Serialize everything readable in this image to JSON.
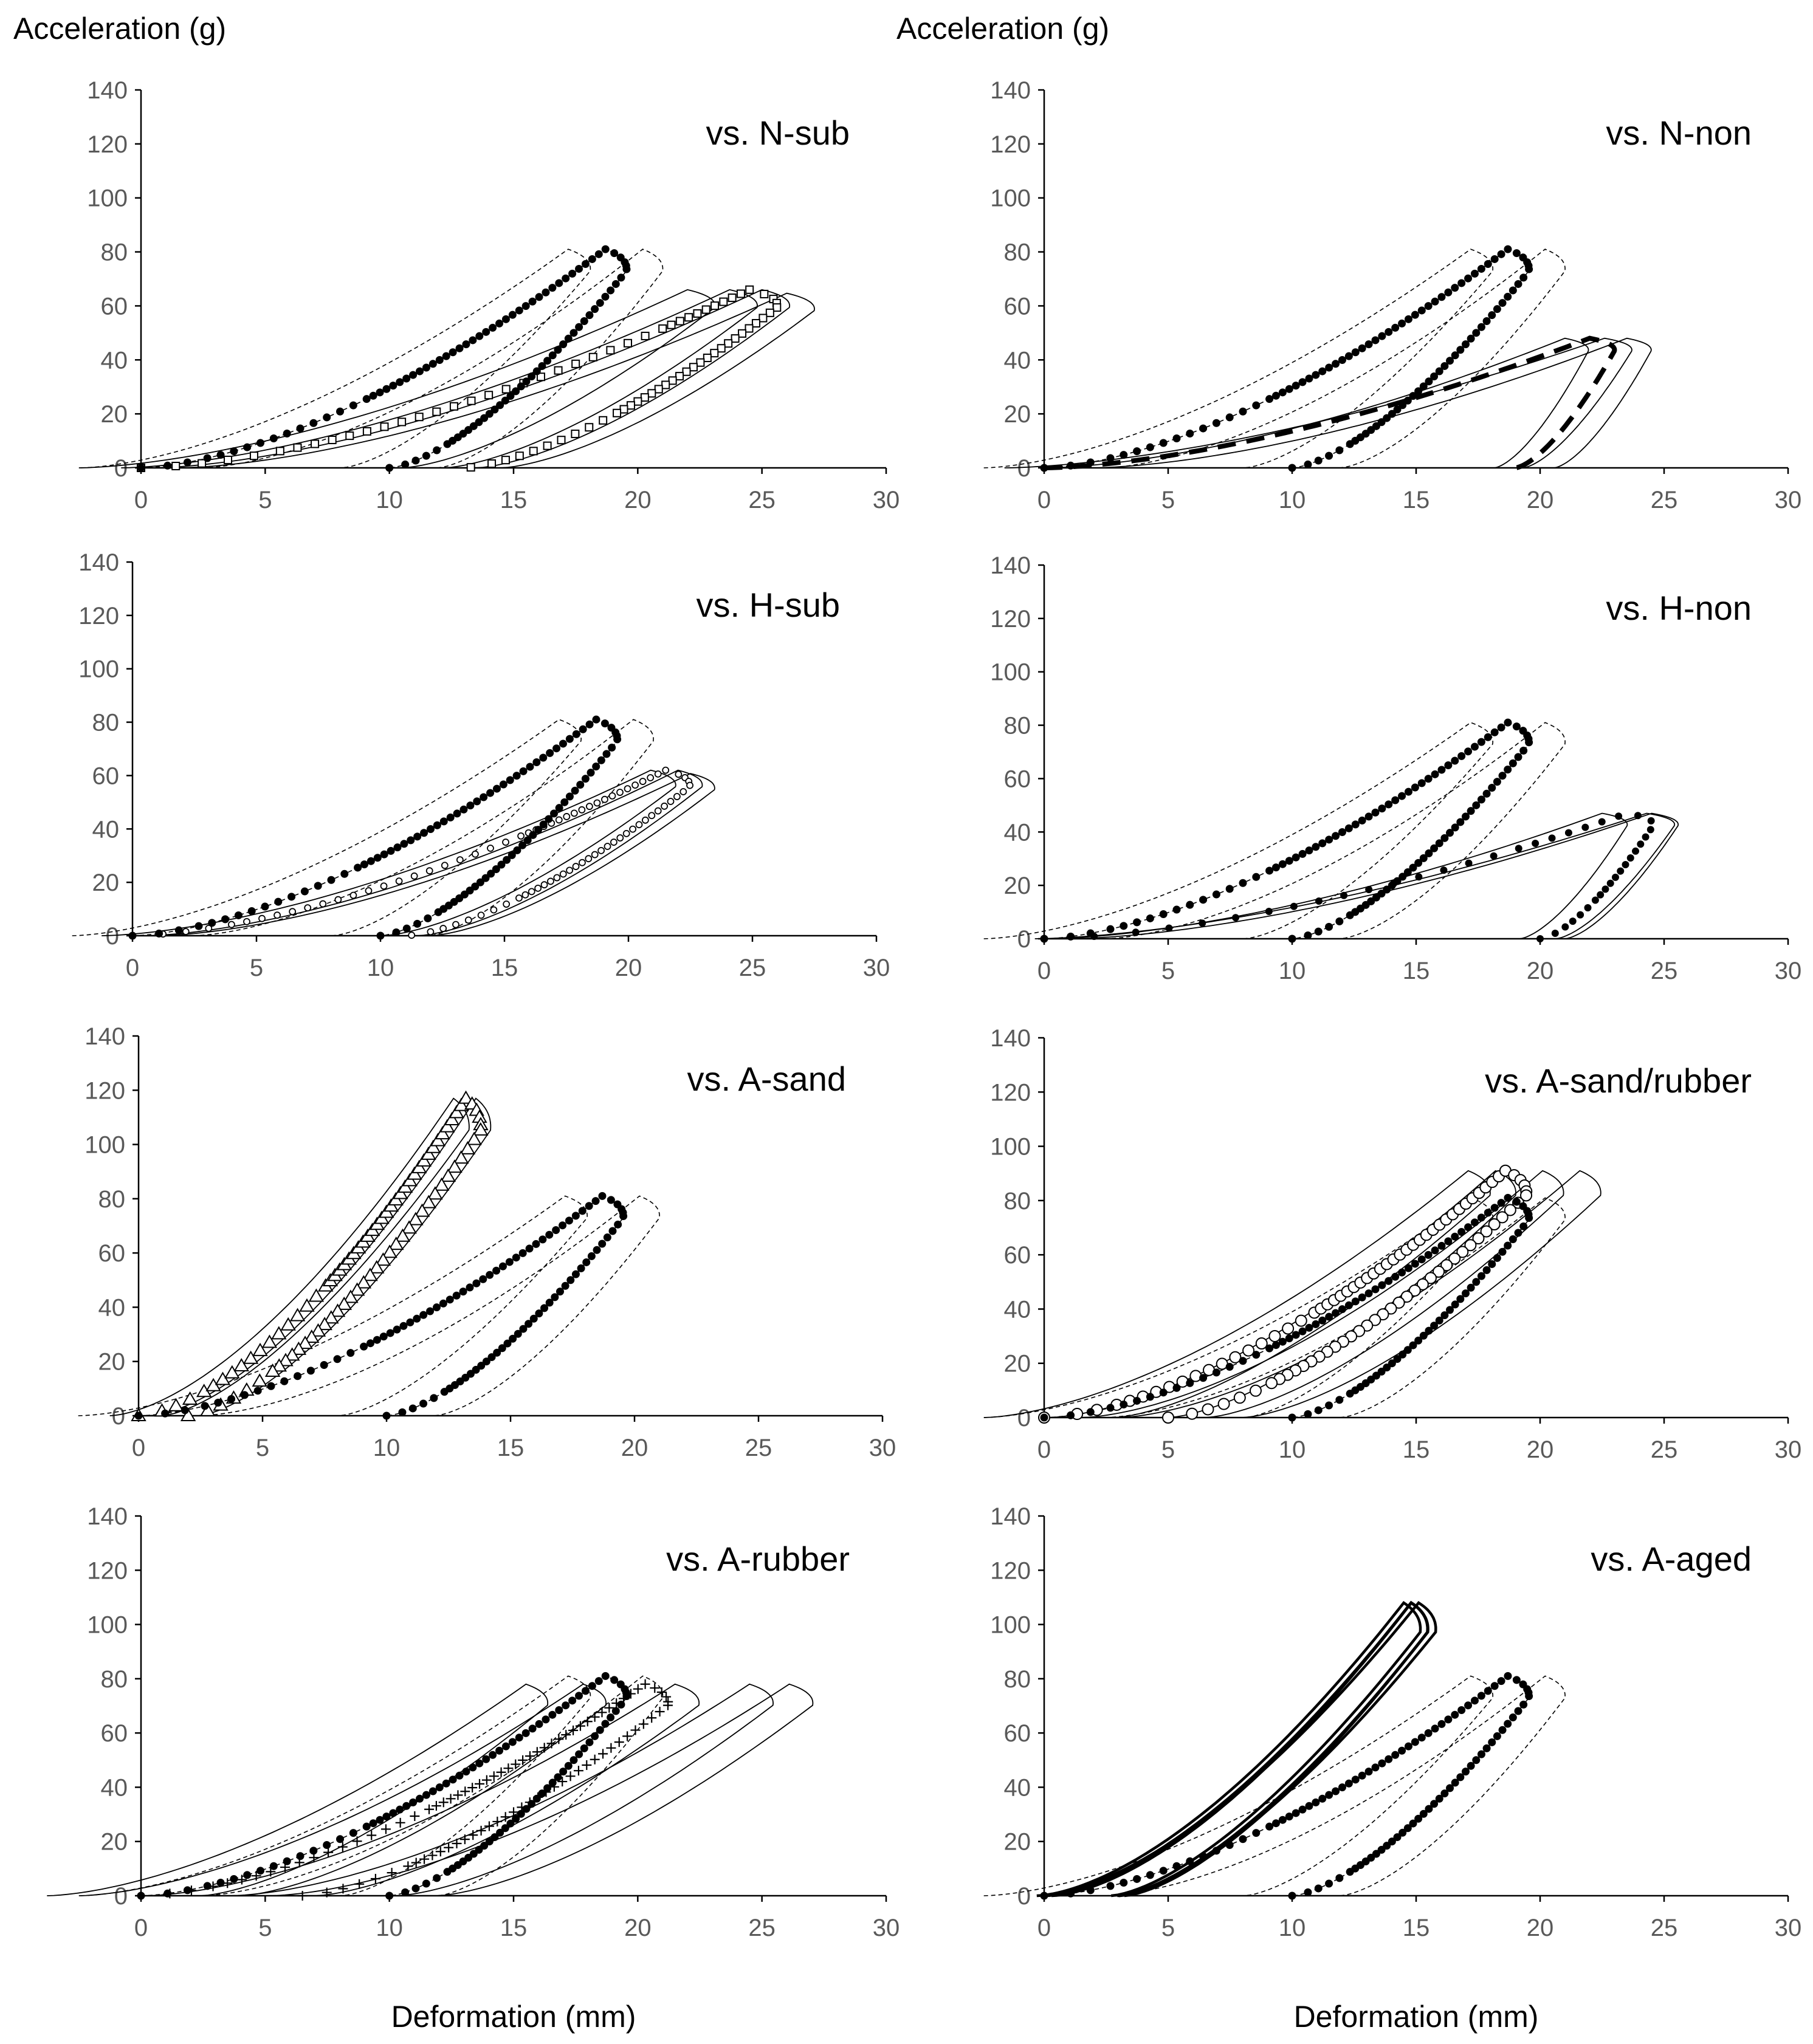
{
  "figure": {
    "ylabel_left": "Acceleration (g)",
    "ylabel_right": "Acceleration (g)",
    "xlabel_left": "Deformation (mm)",
    "xlabel_right": "Deformation (mm)"
  },
  "chart_data": [
    {
      "type": "line",
      "title": "vs. N-sub",
      "xlabel": "Deformation (mm)",
      "ylabel": "Acceleration (g)",
      "xlim": [
        0,
        30
      ],
      "ylim": [
        0,
        140
      ],
      "xticks": [
        "0",
        "5",
        "10",
        "15",
        "20",
        "25",
        "30"
      ],
      "yticks": [
        "0",
        "20",
        "40",
        "60",
        "80",
        "100",
        "120",
        "140"
      ],
      "reference": {
        "name": "reference (filled circles)",
        "peak": [
          18.7,
          81
        ],
        "unload_end": 10,
        "variants": [
          [
            0,
            1.0,
            1.0
          ],
          [
            -1.5,
            1.05,
            1.0
          ],
          [
            1.5,
            0.95,
            1.0
          ]
        ]
      },
      "comparison": {
        "name": "comparison (open squares)",
        "marker": "square",
        "peak": [
          24.5,
          66
        ],
        "unload_end": 13,
        "variants": [
          [
            0.5,
            1.0,
            1.0
          ],
          [
            -0.8,
            1.0,
            1.0
          ],
          [
            1.5,
            1.0,
            0.98
          ],
          [
            -2.5,
            1.0,
            1.0
          ]
        ]
      }
    },
    {
      "type": "line",
      "title": "vs. N-non",
      "xlabel": "Deformation (mm)",
      "ylabel": "Acceleration (g)",
      "xlim": [
        0,
        30
      ],
      "ylim": [
        0,
        140
      ],
      "xticks": [
        "0",
        "5",
        "10",
        "15",
        "20",
        "25",
        "30"
      ],
      "yticks": [
        "0",
        "20",
        "40",
        "60",
        "80",
        "100",
        "120",
        "140"
      ],
      "reference": {
        "name": "reference (filled circles)",
        "peak": [
          18.7,
          81
        ],
        "unload_end": 10,
        "variants": [
          [
            0,
            1.0,
            1.0
          ],
          [
            -1.5,
            1.05,
            1.0
          ],
          [
            1.5,
            0.95,
            1.0
          ]
        ]
      },
      "comparison": {
        "name": "comparison (bold dashed)",
        "marker": "dash",
        "peak": [
          22,
          48
        ],
        "unload_end": 19,
        "variants": [
          [
            0.6,
            1.1,
            1.0
          ],
          [
            -1.0,
            0.95,
            1.0
          ],
          [
            1.5,
            0.98,
            1.0
          ]
        ]
      }
    },
    {
      "type": "line",
      "title": "vs. H-sub",
      "xlabel": "Deformation (mm)",
      "ylabel": "Acceleration (g)",
      "xlim": [
        0,
        30
      ],
      "ylim": [
        0,
        140
      ],
      "xticks": [
        "0",
        "5",
        "10",
        "15",
        "20",
        "25",
        "30"
      ],
      "yticks": [
        "0",
        "20",
        "40",
        "60",
        "80",
        "100",
        "120",
        "140"
      ],
      "reference": {
        "name": "reference (filled circles)",
        "peak": [
          18.7,
          81
        ],
        "unload_end": 10,
        "variants": [
          [
            0,
            1.0,
            1.0
          ],
          [
            -1.5,
            1.05,
            1.0
          ],
          [
            1.5,
            0.95,
            1.0
          ]
        ]
      },
      "comparison": {
        "name": "comparison (small open circles)",
        "marker": "smallcircle",
        "peak": [
          21.5,
          62
        ],
        "unload_end": 11,
        "variants": [
          [
            0.5,
            1.0,
            1.0
          ],
          [
            -0.6,
            1.03,
            1.0
          ],
          [
            1.0,
            1.0,
            0.98
          ]
        ]
      }
    },
    {
      "type": "line",
      "title": "vs. H-non",
      "xlabel": "Deformation (mm)",
      "ylabel": "Acceleration (g)",
      "xlim": [
        0,
        30
      ],
      "ylim": [
        0,
        140
      ],
      "xticks": [
        "0",
        "5",
        "10",
        "15",
        "20",
        "25",
        "30"
      ],
      "yticks": [
        "0",
        "20",
        "40",
        "60",
        "80",
        "100",
        "120",
        "140"
      ],
      "reference": {
        "name": "reference (filled circles)",
        "peak": [
          18.7,
          81
        ],
        "unload_end": 10,
        "variants": [
          [
            0,
            1.0,
            1.0
          ],
          [
            -1.5,
            1.05,
            1.0
          ],
          [
            1.5,
            0.95,
            1.0
          ]
        ]
      },
      "comparison": {
        "name": "comparison (dotted)",
        "marker": "dot",
        "peak": [
          23.5,
          47
        ],
        "unload_end": 20,
        "variants": [
          [
            0.8,
            1.05,
            1.0
          ],
          [
            -1.0,
            0.95,
            1.0
          ],
          [
            1.0,
            1.0,
            1.0
          ]
        ]
      }
    },
    {
      "type": "line",
      "title": "vs. A-sand",
      "xlabel": "",
      "ylabel": "Acceleration (g)",
      "xlim": [
        0,
        30
      ],
      "ylim": [
        0,
        140
      ],
      "xticks": [
        "0",
        "5",
        "10",
        "15",
        "20",
        "25",
        "30"
      ],
      "yticks": [
        "0",
        "20",
        "40",
        "60",
        "80",
        "100",
        "120",
        "140"
      ],
      "reference": {
        "name": "reference (filled circles)",
        "peak": [
          18.7,
          81
        ],
        "unload_end": 10,
        "variants": [
          [
            0,
            1.0,
            1.0
          ],
          [
            -1.5,
            1.05,
            1.0
          ],
          [
            1.5,
            0.95,
            1.0
          ]
        ]
      },
      "comparison": {
        "name": "comparison (open triangles)",
        "marker": "triangle",
        "peak": [
          13.2,
          117
        ],
        "unload_end": 2,
        "variants": [
          [
            -0.5,
            1.05,
            1.0
          ],
          [
            0.4,
            1.0,
            1.0
          ]
        ]
      }
    },
    {
      "type": "line",
      "title": "vs. A-sand/rubber",
      "xlabel": "",
      "ylabel": "Acceleration (g)",
      "xlim": [
        0,
        30
      ],
      "ylim": [
        0,
        140
      ],
      "xticks": [
        "0",
        "5",
        "10",
        "15",
        "20",
        "25",
        "30"
      ],
      "yticks": [
        "0",
        "20",
        "40",
        "60",
        "80",
        "100",
        "120",
        "140"
      ],
      "reference": {
        "name": "reference (filled circles)",
        "peak": [
          18.7,
          81
        ],
        "unload_end": 10,
        "variants": [
          [
            0,
            1.0,
            1.0
          ],
          [
            -1.5,
            1.05,
            1.0
          ],
          [
            1.5,
            0.95,
            1.0
          ]
        ]
      },
      "comparison": {
        "name": "comparison (open circles)",
        "marker": "circle",
        "peak": [
          18.6,
          91
        ],
        "unload_end": 5,
        "variants": [
          [
            -1.5,
            1.05,
            1.0
          ],
          [
            -0.4,
            0.97,
            1.0
          ],
          [
            1.5,
            1.0,
            1.0
          ],
          [
            3.0,
            1.0,
            1.0
          ]
        ]
      }
    },
    {
      "type": "line",
      "title": "vs. A-rubber",
      "xlabel": "Deformation (mm)",
      "ylabel": "Acceleration (g)",
      "xlim": [
        0,
        30
      ],
      "ylim": [
        0,
        140
      ],
      "xticks": [
        "0",
        "5",
        "10",
        "15",
        "20",
        "25",
        "30"
      ],
      "yticks": [
        "0",
        "20",
        "40",
        "60",
        "80",
        "100",
        "120",
        "140"
      ],
      "reference": {
        "name": "reference (filled circles)",
        "peak": [
          18.7,
          81
        ],
        "unload_end": 10,
        "variants": [
          [
            0,
            1.0,
            1.0
          ],
          [
            -1.5,
            1.05,
            1.0
          ],
          [
            1.5,
            0.95,
            1.0
          ]
        ]
      },
      "comparison": {
        "name": "comparison (plus markers)",
        "marker": "plus",
        "peak": [
          20.3,
          78
        ],
        "unload_end": 6.5,
        "variants": [
          [
            -4.8,
            0.95,
            1.0
          ],
          [
            -2.5,
            1.0,
            1.0
          ],
          [
            1.2,
            1.05,
            1.0
          ],
          [
            4.2,
            1.03,
            1.0
          ],
          [
            5.8,
            1.03,
            1.0
          ]
        ]
      }
    },
    {
      "type": "line",
      "title": "vs. A-aged",
      "xlabel": "Deformation (mm)",
      "ylabel": "Acceleration (g)",
      "xlim": [
        0,
        30
      ],
      "ylim": [
        0,
        140
      ],
      "xticks": [
        "0",
        "5",
        "10",
        "15",
        "20",
        "25",
        "30"
      ],
      "yticks": [
        "0",
        "20",
        "40",
        "60",
        "80",
        "100",
        "120",
        "140"
      ],
      "reference": {
        "name": "reference (filled circles)",
        "peak": [
          18.7,
          81
        ],
        "unload_end": 10,
        "variants": [
          [
            0,
            1.0,
            1.0
          ],
          [
            -1.5,
            1.05,
            1.0
          ],
          [
            1.5,
            0.95,
            1.0
          ]
        ]
      },
      "comparison": {
        "name": "comparison (bold solid)",
        "marker": "bold",
        "peak": [
          14.8,
          108
        ],
        "unload_end": 3,
        "variants": [
          [
            0.3,
            1.03,
            1.0
          ],
          [
            -0.3,
            1.0,
            1.0
          ],
          [
            0.0,
            0.98,
            1.0
          ]
        ]
      }
    }
  ]
}
